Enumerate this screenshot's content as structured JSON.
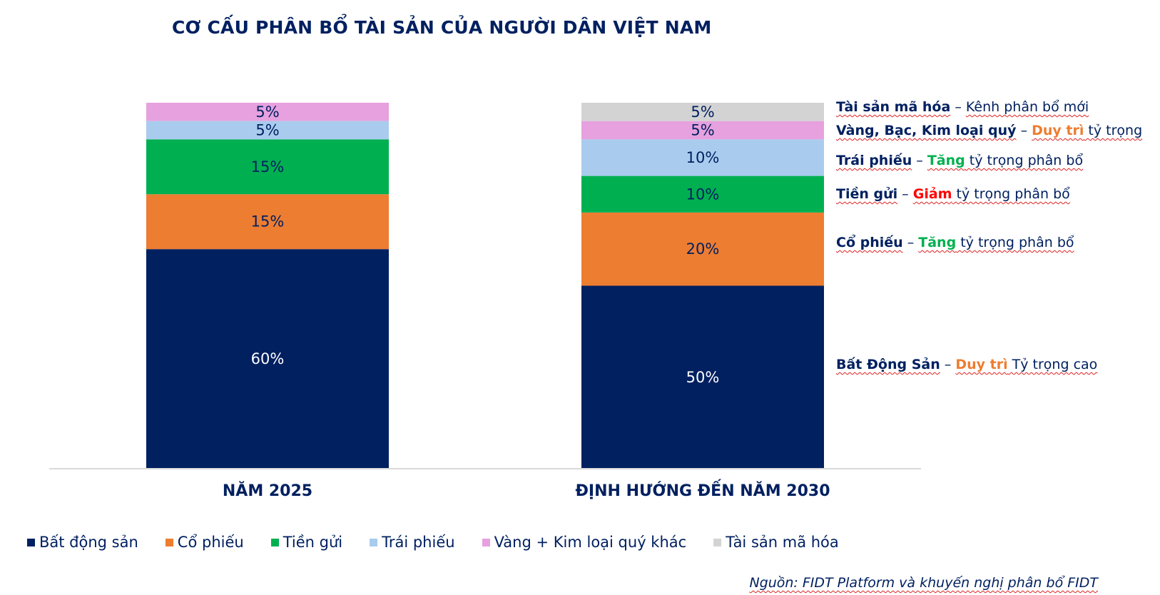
{
  "chart_data": {
    "type": "bar",
    "stacked": true,
    "title": "CƠ CẤU PHÂN BỔ TÀI SẢN CỦA NGƯỜI DÂN VIỆT NAM",
    "categories": [
      "NĂM 2025",
      "ĐỊNH HƯỚNG ĐẾN NĂM 2030"
    ],
    "ylim": [
      0,
      100
    ],
    "series": [
      {
        "name": "Bất động sản",
        "color": "#002060",
        "label_color": "#ffffff",
        "values": [
          60,
          50
        ]
      },
      {
        "name": "Cổ phiếu",
        "color": "#ED7D31",
        "label_color": "#002060",
        "values": [
          15,
          20
        ]
      },
      {
        "name": "Tiền gửi",
        "color": "#00B050",
        "label_color": "#002060",
        "values": [
          15,
          10
        ]
      },
      {
        "name": "Trái phiếu",
        "color": "#A9CCEE",
        "label_color": "#002060",
        "values": [
          5,
          10
        ]
      },
      {
        "name": "Vàng + Kim loại quý khác",
        "color": "#E6A1DE",
        "label_color": "#002060",
        "values": [
          5,
          5
        ]
      },
      {
        "name": "Tài sản mã hóa",
        "color": "#D3D3D3",
        "label_color": "#002060",
        "values": [
          0,
          5
        ]
      }
    ],
    "legend_position": "bottom",
    "grid": false
  },
  "annotations": [
    {
      "bold": "Tài sản mã hóa",
      "sep": " – ",
      "hl": "",
      "hl_color": "",
      "rest": "Kênh phân bổ mới"
    },
    {
      "bold": "Vàng, Bạc, Kim loại quý",
      "sep": " – ",
      "hl": "Duy trì",
      "hl_color": "#ED7D31",
      "rest": " tỷ trọng"
    },
    {
      "bold": "Trái phiếu",
      "sep": " – ",
      "hl": "Tăng",
      "hl_color": "#00B050",
      "rest": " tỷ trọng phân bổ"
    },
    {
      "bold": "Tiền gửi",
      "sep": " – ",
      "hl": "Giảm",
      "hl_color": "#FF0000",
      "rest": " tỷ trọng phân bổ"
    },
    {
      "bold": "Cổ phiếu",
      "sep": " – ",
      "hl": "Tăng",
      "hl_color": "#00B050",
      "rest": " tỷ trọng phân bổ"
    },
    {
      "bold": "Bất Động Sản",
      "sep": " – ",
      "hl": "Duy trì",
      "hl_color": "#ED7D31",
      "rest": " Tỷ trọng cao"
    }
  ],
  "source": "Nguồn: FIDT Platform và khuyến nghị phân bổ FIDT"
}
